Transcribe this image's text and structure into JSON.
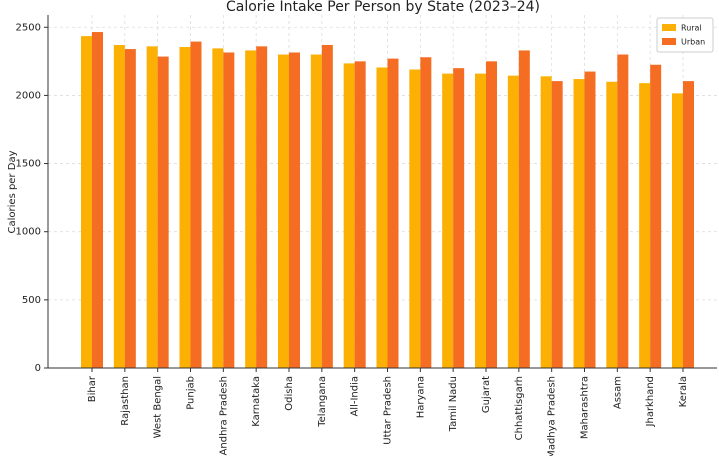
{
  "chart_data": {
    "type": "bar",
    "title": "Calorie Intake Per Person by State (2023–24)",
    "y_label": "Calories per Day",
    "categories": [
      "Bihar",
      "Rajasthan",
      "West Bengal",
      "Punjab",
      "Andhra Pradesh",
      "Karnataka",
      "Odisha",
      "Telangana",
      "All-India",
      "Uttar Pradesh",
      "Haryana",
      "Tamil Nadu",
      "Gujarat",
      "Chhattisgarh",
      "Madhya Pradesh",
      "Maharashtra",
      "Assam",
      "Jharkhand",
      "Kerala"
    ],
    "series": [
      {
        "name": "Rural",
        "color": "#fbb003",
        "values": [
          2435,
          2370,
          2360,
          2355,
          2345,
          2330,
          2300,
          2300,
          2235,
          2205,
          2190,
          2160,
          2160,
          2145,
          2140,
          2120,
          2100,
          2090,
          2015
        ]
      },
      {
        "name": "Urban",
        "color": "#f46d22",
        "values": [
          2465,
          2340,
          2285,
          2395,
          2315,
          2360,
          2315,
          2370,
          2250,
          2270,
          2280,
          2200,
          2250,
          2330,
          2105,
          2175,
          2300,
          2225,
          2105
        ]
      }
    ],
    "ylim": [
      0,
      2590
    ],
    "yticks": [
      0,
      500,
      1000,
      1500,
      2000,
      2500
    ],
    "grid": true,
    "legend": "upper right"
  }
}
